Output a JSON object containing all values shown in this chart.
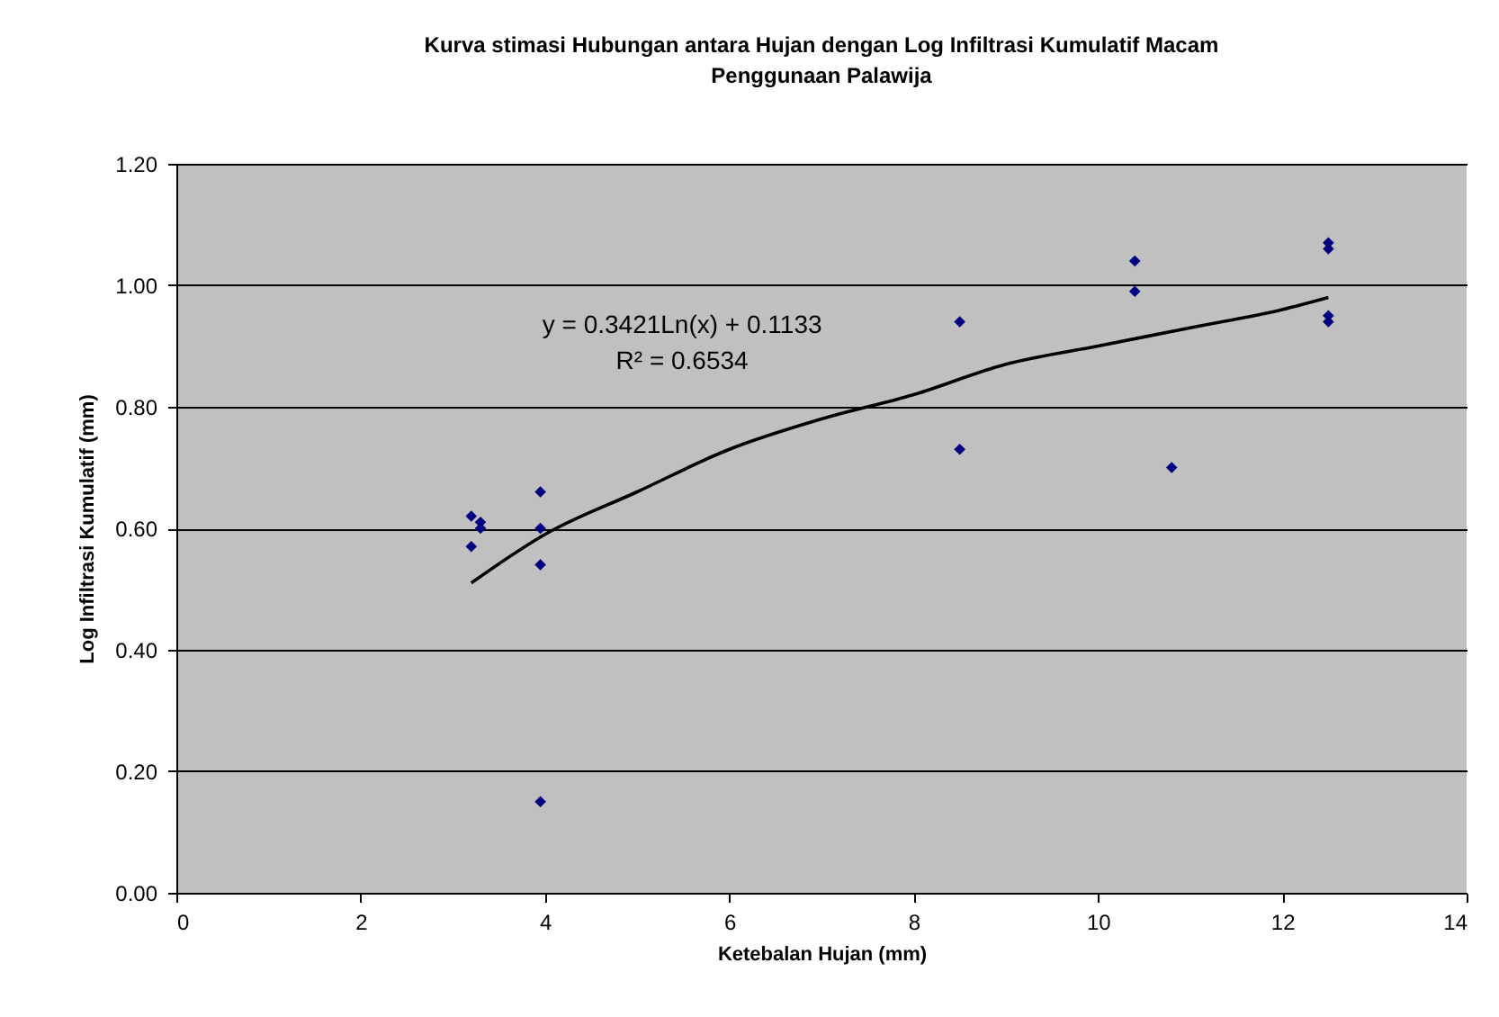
{
  "chart_data": {
    "type": "scatter",
    "title": "Kurva stimasi Hubungan antara Hujan dengan Log Infiltrasi Kumulatif Macam Penggunaan Palawija",
    "xlabel": "Ketebalan Hujan (mm)",
    "ylabel": "Log Infiltrasi Kumulatif (mm)",
    "annotations": [
      "y = 0.3421Ln(x) + 0.1133",
      "R² = 0.6534"
    ],
    "series": [
      {
        "color": "#000080",
        "marker": "diamond",
        "x": [
          3.2,
          3.3,
          3.3,
          3.2,
          3.95,
          3.95,
          3.95,
          3.95,
          8.5,
          8.5,
          10.4,
          10.4,
          10.8,
          12.5,
          12.5,
          12.5,
          12.5
        ],
        "values": [
          0.62,
          0.61,
          0.6,
          0.57,
          0.66,
          0.6,
          0.54,
          0.15,
          0.94,
          0.73,
          1.04,
          0.99,
          0.7,
          1.07,
          1.06,
          0.95,
          0.94
        ]
      },
      {
        "type": "line",
        "marker": "none",
        "color": "#000000",
        "x": [
          3.2,
          4,
          5,
          6,
          7,
          8,
          9,
          10,
          11,
          12,
          12.5
        ],
        "values": [
          0.51,
          0.59,
          0.66,
          0.73,
          0.78,
          0.82,
          0.87,
          0.9,
          0.93,
          0.96,
          0.98
        ]
      }
    ],
    "xlim": [
      0,
      14
    ],
    "xticks": [
      0,
      2,
      4,
      6,
      8,
      10,
      12,
      14
    ],
    "ylim": [
      0,
      1.2
    ],
    "yticks": [
      {
        "value": 0,
        "label": "0.00"
      },
      {
        "value": 0.2,
        "label": "0.20"
      },
      {
        "value": 0.4,
        "label": "0.40"
      },
      {
        "value": 0.6,
        "label": "0.60"
      },
      {
        "value": 0.8,
        "label": "0.80"
      },
      {
        "value": 1,
        "label": "1.00"
      },
      {
        "value": 1.2,
        "label": "1.20"
      }
    ],
    "grid": "y"
  }
}
